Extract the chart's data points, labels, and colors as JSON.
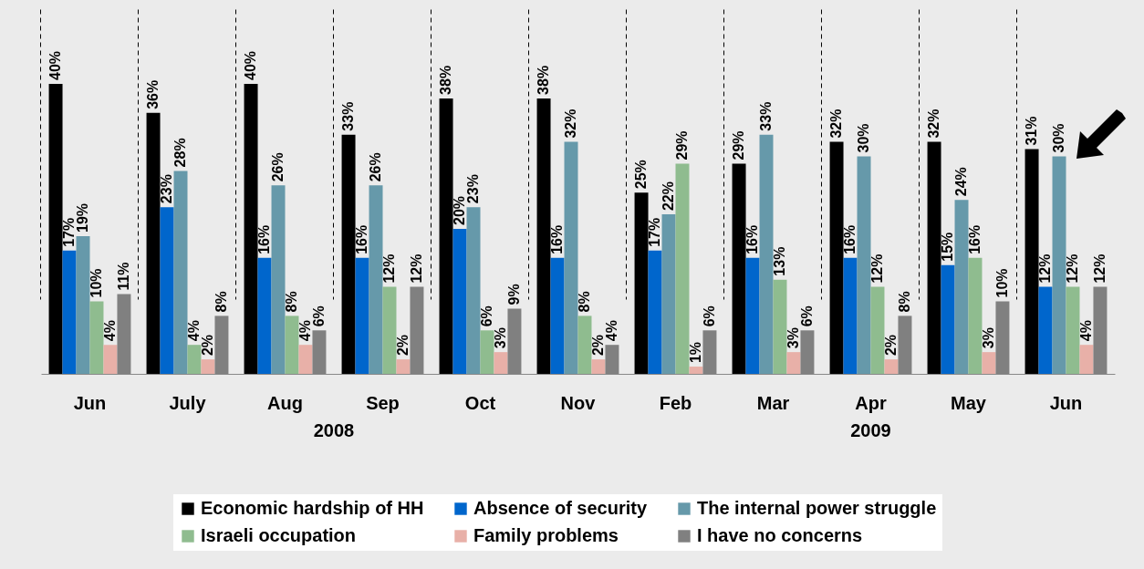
{
  "chart_data": {
    "type": "bar",
    "categories": [
      "Jun",
      "July",
      "Aug",
      "Sep",
      "Oct",
      "Nov",
      "Feb",
      "Mar",
      "Apr",
      "May",
      "Jun"
    ],
    "series": [
      {
        "name": "Economic hardship of HH",
        "color": "#000000",
        "values": [
          40,
          36,
          40,
          33,
          38,
          38,
          25,
          29,
          32,
          32,
          31
        ],
        "value_labels": [
          "40%",
          "36%",
          "40%",
          "33%",
          "38%",
          "38%",
          "25%",
          "29%",
          "32%",
          "32%",
          "31%"
        ]
      },
      {
        "name": "Absence of security",
        "color": "#0066cc",
        "values": [
          17,
          23,
          16,
          16,
          20,
          16,
          17,
          16,
          16,
          15,
          12
        ],
        "value_labels": [
          "17%",
          "23%",
          "16%",
          "16%",
          "20%",
          "16%",
          "17%",
          "16%",
          "16%",
          "15%",
          "12%"
        ]
      },
      {
        "name": "The internal power struggle",
        "color": "#6699aa",
        "values": [
          19,
          28,
          26,
          26,
          23,
          32,
          22,
          33,
          30,
          24,
          30
        ],
        "value_labels": [
          "19%",
          "28%",
          "26%",
          "26%",
          "23%",
          "32%",
          "22%",
          "33%",
          "30%",
          "24%",
          "30%"
        ]
      },
      {
        "name": "Israeli occupation",
        "color": "#8fbc8f",
        "values": [
          10,
          4,
          8,
          12,
          6,
          8,
          29,
          13,
          12,
          16,
          12
        ],
        "value_labels": [
          "10%",
          "4%",
          "8%",
          "12%",
          "6%",
          "8%",
          "29%",
          "13%",
          "12%",
          "16%",
          "12%"
        ]
      },
      {
        "name": "Family problems",
        "color": "#e8b0a8",
        "values": [
          4,
          2,
          4,
          2,
          3,
          2,
          1,
          3,
          2,
          3,
          4
        ],
        "value_labels": [
          "4%",
          "2%",
          "4%",
          "2%",
          "3%",
          "2%",
          "1%",
          "3%",
          "2%",
          "3%",
          "4%"
        ]
      },
      {
        "name": "I have no concerns",
        "color": "#808080",
        "values": [
          11,
          8,
          6,
          12,
          9,
          4,
          6,
          6,
          8,
          10,
          12
        ],
        "value_labels": [
          "11%",
          "8%",
          "6%",
          "12%",
          "9%",
          "4%",
          "6%",
          "6%",
          "8%",
          "10%",
          "12%"
        ]
      }
    ],
    "annotations": [
      "2008",
      "2009"
    ],
    "grid": "x",
    "legend": "bottom"
  }
}
